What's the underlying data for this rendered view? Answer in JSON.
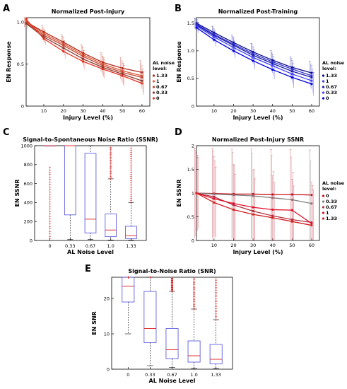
{
  "chart_data": [
    {
      "panel": "A",
      "type": "line",
      "title": "Normalized Post-Injury",
      "xlabel": "Injury Level (%)",
      "ylabel": "EN Response",
      "x": [
        1,
        10,
        20,
        30,
        40,
        50,
        60
      ],
      "xticks": [
        "10",
        "20",
        "30",
        "40",
        "50",
        "60"
      ],
      "yticks": [
        "0",
        "0.5",
        "1.0"
      ],
      "ylim": [
        0,
        1.05
      ],
      "legend_title": "AL noise level:",
      "series": [
        {
          "name": "1.33",
          "color": "#b02a1f",
          "values": [
            1.0,
            0.88,
            0.76,
            0.63,
            0.52,
            0.45,
            0.4
          ]
        },
        {
          "name": "1",
          "color": "#e05a3a",
          "values": [
            1.0,
            0.86,
            0.74,
            0.61,
            0.5,
            0.42,
            0.36
          ]
        },
        {
          "name": "0.67",
          "color": "#c0452e",
          "values": [
            0.99,
            0.84,
            0.72,
            0.59,
            0.48,
            0.4,
            0.34
          ]
        },
        {
          "name": "0.33",
          "color": "#8a3a30",
          "values": [
            0.98,
            0.82,
            0.69,
            0.56,
            0.46,
            0.38,
            0.3
          ]
        },
        {
          "name": "0",
          "color": "#e8301f",
          "values": [
            1.03,
            0.8,
            0.65,
            0.53,
            0.44,
            0.36,
            0.27
          ]
        }
      ]
    },
    {
      "panel": "B",
      "type": "line",
      "title": "Normalized Post-Training",
      "xlabel": "Injury Level (%)",
      "ylabel": "EN Response",
      "x": [
        1,
        10,
        20,
        30,
        40,
        50,
        60
      ],
      "xticks": [
        "10",
        "20",
        "30",
        "40",
        "50",
        "60"
      ],
      "yticks": [
        "0",
        "0.5",
        "1.0",
        "1.5"
      ],
      "ylim": [
        0,
        1.6
      ],
      "legend_title": "AL noise level:",
      "series": [
        {
          "name": "1.33",
          "color": "#0a0a8a",
          "values": [
            1.5,
            1.33,
            1.15,
            0.98,
            0.83,
            0.7,
            0.6
          ]
        },
        {
          "name": "1",
          "color": "#3a3ad0",
          "values": [
            1.48,
            1.3,
            1.12,
            0.95,
            0.8,
            0.67,
            0.55
          ]
        },
        {
          "name": "0.67",
          "color": "#1a1aa8",
          "values": [
            1.47,
            1.28,
            1.1,
            0.92,
            0.77,
            0.63,
            0.52
          ]
        },
        {
          "name": "0.33",
          "color": "#4040ff",
          "values": [
            1.45,
            1.25,
            1.06,
            0.88,
            0.73,
            0.58,
            0.46
          ]
        },
        {
          "name": "0",
          "color": "#0000e0",
          "values": [
            1.42,
            1.2,
            1.0,
            0.82,
            0.66,
            0.52,
            0.4
          ]
        }
      ]
    },
    {
      "panel": "C",
      "type": "box",
      "title": "Signal-to-Spontaneous Noise Ratio (SSNR)",
      "xlabel": "AL Noise Level",
      "ylabel": "EN SSNR",
      "categories": [
        "0",
        "0.33",
        "0.67",
        "1.0",
        "1.33"
      ],
      "yticks": [
        "0",
        "200",
        "400",
        "600",
        "800",
        "1000"
      ],
      "ylim": [
        0,
        1000
      ],
      "boxes": [
        {
          "min": 1000,
          "q1": 1000,
          "median": 1000,
          "q3": 1000,
          "max": 1000
        },
        {
          "min": 10,
          "q1": 270,
          "median": 1000,
          "q3": 1000,
          "max": 1000
        },
        {
          "min": 10,
          "q1": 80,
          "median": 225,
          "q3": 920,
          "max": 1000
        },
        {
          "min": 5,
          "q1": 40,
          "median": 110,
          "q3": 280,
          "max": 650
        },
        {
          "min": 5,
          "q1": 20,
          "median": 50,
          "q3": 150,
          "max": 400
        }
      ]
    },
    {
      "panel": "D",
      "type": "line",
      "title": "Normalized Post-Injury SSNR",
      "xlabel": "Injury Level (%)",
      "ylabel": "EN SSNR",
      "x": [
        1,
        10,
        20,
        30,
        40,
        50,
        60
      ],
      "xticks": [
        "10",
        "20",
        "30",
        "40",
        "50",
        "60"
      ],
      "yticks": [
        "0",
        "0.5",
        "1",
        "1.5",
        "2"
      ],
      "ylim": [
        0,
        2
      ],
      "legend_title": "AL noise level:",
      "series": [
        {
          "name": "0",
          "color": "#c0101a",
          "values": [
            1.0,
            0.99,
            0.98,
            0.98,
            0.97,
            0.97,
            0.96
          ]
        },
        {
          "name": "0.33",
          "color": "#808080",
          "values": [
            1.0,
            0.98,
            0.96,
            0.94,
            0.9,
            0.86,
            0.78
          ]
        },
        {
          "name": "0.67",
          "color": "#b03040",
          "values": [
            1.0,
            0.92,
            0.75,
            0.62,
            0.52,
            0.44,
            0.38
          ]
        },
        {
          "name": "1",
          "color": "#e0102a",
          "values": [
            1.0,
            0.88,
            0.78,
            0.7,
            0.65,
            0.64,
            0.36
          ]
        },
        {
          "name": "1.33",
          "color": "#d02020",
          "values": [
            1.0,
            0.8,
            0.65,
            0.55,
            0.48,
            0.4,
            0.32
          ]
        }
      ]
    },
    {
      "panel": "E",
      "type": "box",
      "title": "Signal-to-Noise Ratio (SNR)",
      "xlabel": "AL Noise Level",
      "ylabel": "EN SNR",
      "categories": [
        "0",
        "0.33",
        "0.67",
        "1.0",
        "1.33"
      ],
      "yticks": [
        "0",
        "10",
        "20"
      ],
      "ylim": [
        0,
        26
      ],
      "boxes": [
        {
          "min": 10,
          "q1": 19,
          "median": 23.5,
          "q3": 26,
          "max": 26
        },
        {
          "min": 1,
          "q1": 7.5,
          "median": 11.5,
          "q3": 22,
          "max": 26
        },
        {
          "min": 0.5,
          "q1": 3,
          "median": 5.5,
          "q3": 11.5,
          "max": 22
        },
        {
          "min": 0.2,
          "q1": 2,
          "median": 3.8,
          "q3": 8,
          "max": 17
        },
        {
          "min": 0.2,
          "q1": 1.5,
          "median": 2.8,
          "q3": 7,
          "max": 14
        }
      ]
    }
  ]
}
